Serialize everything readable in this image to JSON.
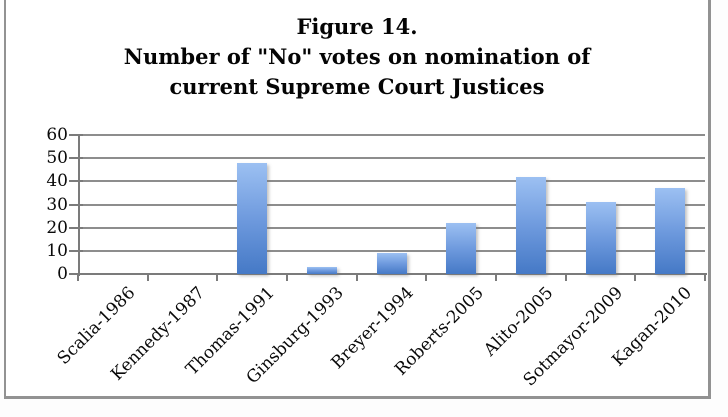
{
  "figure": {
    "title_lines": [
      "Figure 14.",
      "Number of \"No\" votes on nomination of",
      "current Supreme Court Justices"
    ]
  },
  "chart_data": {
    "type": "bar",
    "title": "Figure 14. Number of \"No\" votes on nomination of current Supreme Court Justices",
    "categories": [
      "Scalia-1986",
      "Kennedy-1987",
      "Thomas-1991",
      "Ginsburg-1993",
      "Breyer-1994",
      "Roberts-2005",
      "Alito-2005",
      "Sotmayor-2009",
      "Kagan-2010"
    ],
    "values": [
      0,
      0,
      48,
      3,
      9,
      22,
      42,
      31,
      37
    ],
    "xlabel": "",
    "ylabel": "",
    "ylim": [
      0,
      60
    ],
    "yticks": [
      0,
      10,
      20,
      30,
      40,
      50,
      60
    ],
    "grid": true,
    "legend": false,
    "x_label_rotation_deg": 45,
    "colors": {
      "bar_gradient_top": "#9cc0f2",
      "bar_gradient_mid": "#6d99dd",
      "bar_gradient_bottom": "#4579c6",
      "gridline": "#8d8d8d",
      "axis": "#7b7b7b",
      "frame_border": "#929292",
      "text": "#0a0a0a",
      "background": "#ffffff"
    }
  }
}
